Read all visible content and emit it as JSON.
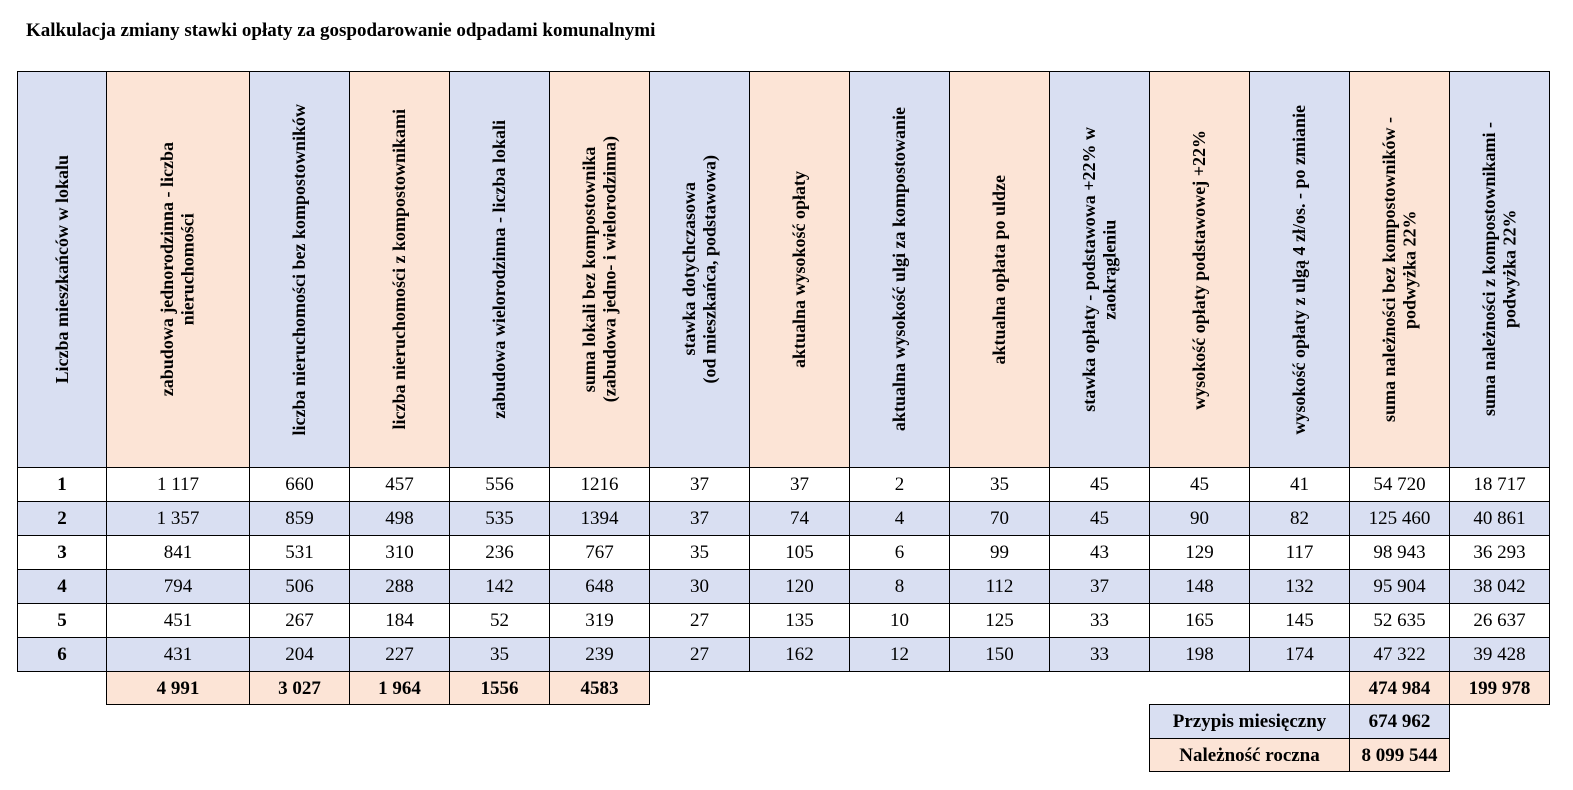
{
  "title": "Kalkulacja zmiany stawki opłaty za gospodarowanie odpadami komunalnymi",
  "colors": {
    "blue": "#d9dff2",
    "peach": "#fce4d6",
    "white": "#ffffff",
    "border": "#000000"
  },
  "table": {
    "headers": [
      "Liczba mieszkańców w lokalu",
      "zabudowa jednorodzinna - liczba\nnieruchomości",
      "liczba nieruchomości bez kompostowników",
      "liczba nieruchomości z kompostownikami",
      "zabudowa wielorodzinna - liczba lokali",
      "suma lokali bez kompostownika\n(zabudowa jedno- i wielorodzinna)",
      "stawka dotychczasowa\n(od mieszkańca, podstawowa)",
      "aktualna wysokość opłaty",
      "aktualna wysokość ulgi za kompostowanie",
      "aktualna opłata po uldze",
      "stawka opłaty - podstawowa +22% w\nzaokrągleniu",
      "wysokość opłaty podstawowej +22%",
      "wysokość opłaty z ulgą 4 zł/os. - po zmianie",
      "suma należności bez kompostowników -\npodwyżka 22%",
      "suma należności z kompostownikami -\npodwyżka 22%"
    ],
    "header_colors": [
      "blue",
      "peach",
      "blue",
      "peach",
      "blue",
      "peach",
      "blue",
      "peach",
      "blue",
      "peach",
      "blue",
      "peach",
      "blue",
      "peach",
      "blue"
    ],
    "rows": [
      [
        "1",
        "1 117",
        "660",
        "457",
        "556",
        "1216",
        "37",
        "37",
        "2",
        "35",
        "45",
        "45",
        "41",
        "54 720",
        "18 717"
      ],
      [
        "2",
        "1 357",
        "859",
        "498",
        "535",
        "1394",
        "37",
        "74",
        "4",
        "70",
        "45",
        "90",
        "82",
        "125 460",
        "40 861"
      ],
      [
        "3",
        "841",
        "531",
        "310",
        "236",
        "767",
        "35",
        "105",
        "6",
        "99",
        "43",
        "129",
        "117",
        "98 943",
        "36 293"
      ],
      [
        "4",
        "794",
        "506",
        "288",
        "142",
        "648",
        "30",
        "120",
        "8",
        "112",
        "37",
        "148",
        "132",
        "95 904",
        "38 042"
      ],
      [
        "5",
        "451",
        "267",
        "184",
        "52",
        "319",
        "27",
        "135",
        "10",
        "125",
        "33",
        "165",
        "145",
        "52 635",
        "26 637"
      ],
      [
        "6",
        "431",
        "204",
        "227",
        "35",
        "239",
        "27",
        "162",
        "12",
        "150",
        "33",
        "198",
        "174",
        "47 322",
        "39 428"
      ]
    ],
    "row_colors": [
      "white",
      "blue",
      "white",
      "blue",
      "white",
      "blue"
    ],
    "totals_left": [
      "4 991",
      "3 027",
      "1 964",
      "1556",
      "4583"
    ],
    "totals_right": [
      "474 984",
      "199 978"
    ]
  },
  "summary": {
    "monthly_label": "Przypis miesięczny",
    "monthly_value": "674 962",
    "annual_label": "Należność roczna",
    "annual_value": "8 099 544"
  }
}
